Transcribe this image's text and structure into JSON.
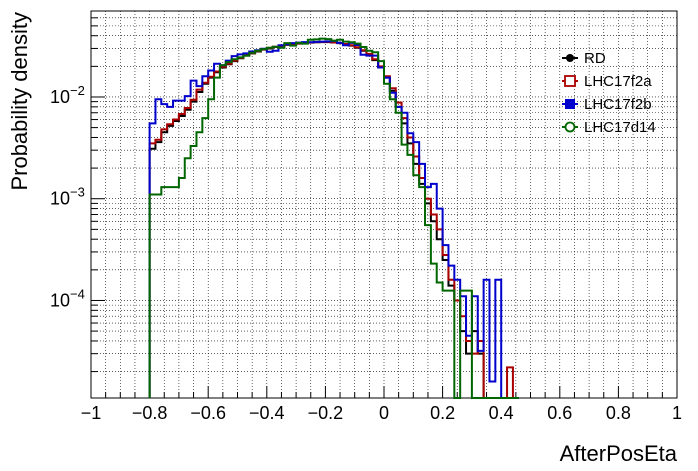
{
  "chart_data": {
    "type": "histogram",
    "xlabel": "AfterPosEta",
    "ylabel": "Probability density",
    "xlim": [
      -1,
      1
    ],
    "ylim": [
      1.1e-05,
      0.07
    ],
    "yscale": "log",
    "grid": true,
    "legend_position": "top-right",
    "x_ticks": [
      {
        "value": -1,
        "label": "−1"
      },
      {
        "value": -0.8,
        "label": "−0.8"
      },
      {
        "value": -0.6,
        "label": "−0.6"
      },
      {
        "value": -0.4,
        "label": "−0.4"
      },
      {
        "value": -0.2,
        "label": "−0.2"
      },
      {
        "value": 0,
        "label": "0"
      },
      {
        "value": 0.2,
        "label": "0.2"
      },
      {
        "value": 0.4,
        "label": "0.4"
      },
      {
        "value": 0.6,
        "label": "0.6"
      },
      {
        "value": 0.8,
        "label": "0.8"
      },
      {
        "value": 1,
        "label": "1"
      }
    ],
    "y_ticks": [
      {
        "value": 0.0001,
        "base": "10",
        "exp": "−4"
      },
      {
        "value": 0.001,
        "base": "10",
        "exp": "−3"
      },
      {
        "value": 0.01,
        "base": "10",
        "exp": "−2"
      }
    ],
    "bin_edges": [
      -0.8,
      -0.78,
      -0.76,
      -0.74,
      -0.72,
      -0.7,
      -0.68,
      -0.66,
      -0.64,
      -0.62,
      -0.6,
      -0.58,
      -0.56,
      -0.54,
      -0.52,
      -0.5,
      -0.48,
      -0.46,
      -0.44,
      -0.42,
      -0.4,
      -0.38,
      -0.36,
      -0.34,
      -0.32,
      -0.3,
      -0.28,
      -0.26,
      -0.24,
      -0.22,
      -0.2,
      -0.18,
      -0.16,
      -0.14,
      -0.12,
      -0.1,
      -0.08,
      -0.06,
      -0.04,
      -0.02,
      0,
      0.02,
      0.04,
      0.06,
      0.08,
      0.1,
      0.12,
      0.14,
      0.16,
      0.18,
      0.2,
      0.22,
      0.24,
      0.26,
      0.28,
      0.3,
      0.32,
      0.34,
      0.36,
      0.38,
      0.4,
      0.42,
      0.44,
      0.46
    ],
    "series": [
      {
        "name": "RD",
        "color": "#000000",
        "marker": "circle",
        "values": [
          0.0031,
          0.0036,
          0.0045,
          0.0052,
          0.0058,
          0.0065,
          0.0075,
          0.009,
          0.0112,
          0.0135,
          0.0155,
          0.0175,
          0.0195,
          0.021,
          0.0225,
          0.024,
          0.0255,
          0.0268,
          0.028,
          0.0292,
          0.03,
          0.031,
          0.0318,
          0.0325,
          0.033,
          0.0335,
          0.0338,
          0.0342,
          0.0345,
          0.0346,
          0.0346,
          0.0343,
          0.0338,
          0.033,
          0.032,
          0.0305,
          0.0285,
          0.026,
          0.023,
          0.0195,
          0.0155,
          0.0115,
          0.008,
          0.0055,
          0.0035,
          0.0022,
          0.0014,
          0.0009,
          0.0006,
          0.0004,
          0.00025,
          0.00014,
          0.0001,
          5e-05,
          3e-05,
          5e-05,
          3e-05,
          0,
          0,
          0,
          0,
          0,
          0
        ]
      },
      {
        "name": "LHC17f2a",
        "color": "#aa0000",
        "marker": "open-square",
        "values": [
          0.0035,
          0.0038,
          0.0048,
          0.0054,
          0.006,
          0.0068,
          0.0078,
          0.0094,
          0.0118,
          0.0138,
          0.0158,
          0.0178,
          0.0198,
          0.0212,
          0.0228,
          0.0242,
          0.0258,
          0.027,
          0.0282,
          0.0294,
          0.0304,
          0.0312,
          0.032,
          0.0328,
          0.0332,
          0.0336,
          0.034,
          0.0343,
          0.0346,
          0.0348,
          0.0348,
          0.0344,
          0.034,
          0.0332,
          0.0322,
          0.0308,
          0.0288,
          0.0265,
          0.0235,
          0.02,
          0.016,
          0.0122,
          0.0088,
          0.0062,
          0.004,
          0.0026,
          0.0016,
          0.001,
          0.0007,
          0.0005,
          0.00028,
          0.00016,
          0.0001,
          7e-05,
          4e-05,
          3e-05,
          4e-05,
          0,
          0,
          0,
          0,
          2.2e-05,
          0
        ]
      },
      {
        "name": "LHC17f2b",
        "color": "#0000cc",
        "marker": "filled-square",
        "values": [
          0.0055,
          0.0095,
          0.0085,
          0.008,
          0.0092,
          0.0092,
          0.0102,
          0.0145,
          0.0128,
          0.016,
          0.0182,
          0.0212,
          0.0205,
          0.0228,
          0.0252,
          0.0262,
          0.0268,
          0.028,
          0.0288,
          0.0298,
          0.0278,
          0.0285,
          0.0322,
          0.033,
          0.0338,
          0.0342,
          0.0346,
          0.0345,
          0.0348,
          0.035,
          0.0352,
          0.0355,
          0.034,
          0.0322,
          0.034,
          0.0324,
          0.026,
          0.0255,
          0.0255,
          0.0195,
          0.0155,
          0.011,
          0.008,
          0.007,
          0.0044,
          0.0036,
          0.0022,
          0.0013,
          0.0014,
          0.0008,
          0.00035,
          0.00022,
          0.00016,
          0.00011,
          4.5e-05,
          0.00011,
          3.2e-05,
          0.00016,
          1.6e-05,
          0.00016,
          0,
          0,
          0
        ]
      },
      {
        "name": "LHC17d14",
        "color": "#006600",
        "marker": "open-circle",
        "values": [
          0.0011,
          0.0011,
          0.0013,
          0.0013,
          0.0013,
          0.0016,
          0.0025,
          0.0033,
          0.0045,
          0.0062,
          0.0095,
          0.0155,
          0.0205,
          0.022,
          0.0235,
          0.0245,
          0.0255,
          0.0272,
          0.0285,
          0.0295,
          0.0305,
          0.0312,
          0.0305,
          0.0338,
          0.032,
          0.034,
          0.0335,
          0.0365,
          0.0368,
          0.0375,
          0.037,
          0.0358,
          0.0365,
          0.035,
          0.0345,
          0.0335,
          0.031,
          0.0285,
          0.0275,
          0.0225,
          0.0135,
          0.0095,
          0.007,
          0.0034,
          0.0027,
          0.0017,
          0.0013,
          0.00055,
          0.00023,
          0.00015,
          0.000125,
          0.000125,
          1.1e-05,
          0.000125,
          0.000125,
          1.1e-05,
          0,
          0,
          0,
          0,
          0,
          0,
          0
        ]
      }
    ]
  }
}
